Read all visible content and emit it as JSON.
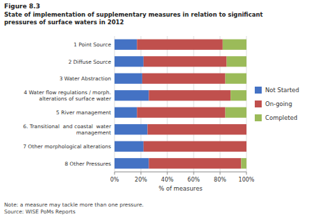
{
  "chart_data": {
    "type": "bar",
    "orientation": "horizontal",
    "stacked": true,
    "title": "State of implementation of supplementary measures in relation to significant\npressures of surface waters in 2012",
    "annotations": [
      "Figure 8.3",
      "Note: a measure may tackle more than one pressure.\nSource: WISE PoMs Reports"
    ],
    "categories": [
      "1 Point Source",
      "2 Diffuse Source",
      "3 Water Abstraction",
      "4 Water flow regulations / morph.\nalterations of surface water",
      "5 River management",
      "6. Transitional  and coastal  water\nmanagement",
      "7 Other morphological alterations",
      "8 Other Pressures"
    ],
    "series": [
      {
        "name": "Not Started",
        "color": "#4472C4",
        "values": [
          17,
          22,
          21,
          26,
          17,
          25,
          22,
          26
        ]
      },
      {
        "name": "On-going",
        "color": "#C0504D",
        "values": [
          65,
          63,
          63,
          62,
          67,
          75,
          78,
          70
        ]
      },
      {
        "name": "Completed",
        "color": "#9BBB59",
        "values": [
          18,
          15,
          16,
          12,
          16,
          0,
          0,
          4
        ]
      }
    ],
    "xlabel": "% of measures",
    "xlim": [
      0,
      100
    ],
    "xticks": [
      {
        "value": 0,
        "label": "0%"
      },
      {
        "value": 20,
        "label": "20%"
      },
      {
        "value": 40,
        "label": "40%"
      },
      {
        "value": 60,
        "label": "60%"
      },
      {
        "value": 80,
        "label": "80%"
      },
      {
        "value": 100,
        "label": "100%"
      }
    ],
    "grid": true,
    "legend": "right"
  }
}
